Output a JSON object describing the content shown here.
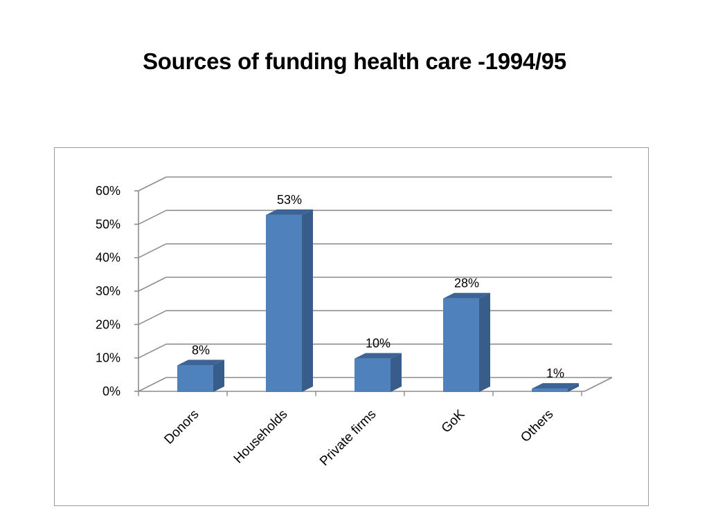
{
  "slide": {
    "title": "Sources of funding health care  -1994/95"
  },
  "colors": {
    "bar_front": "#4f81bd",
    "bar_side": "#385d8a",
    "bar_top": "#3c6497",
    "gridline": "#8c8c8c",
    "frame": "#9a9a9a"
  },
  "chart_data": {
    "type": "bar",
    "style": "3d-column",
    "title": "",
    "xlabel": "",
    "ylabel": "",
    "categories": [
      "Donors",
      "Households",
      "Private firms",
      "GoK",
      "Others"
    ],
    "values": [
      8,
      53,
      10,
      28,
      1
    ],
    "data_labels": [
      "8%",
      "53%",
      "10%",
      "28%",
      "1%"
    ],
    "ylim": [
      0,
      60
    ],
    "yticks": [
      0,
      10,
      20,
      30,
      40,
      50,
      60
    ],
    "ytick_labels": [
      "0%",
      "10%",
      "20%",
      "30%",
      "40%",
      "50%",
      "60%"
    ],
    "grid": true,
    "legend": "none"
  }
}
